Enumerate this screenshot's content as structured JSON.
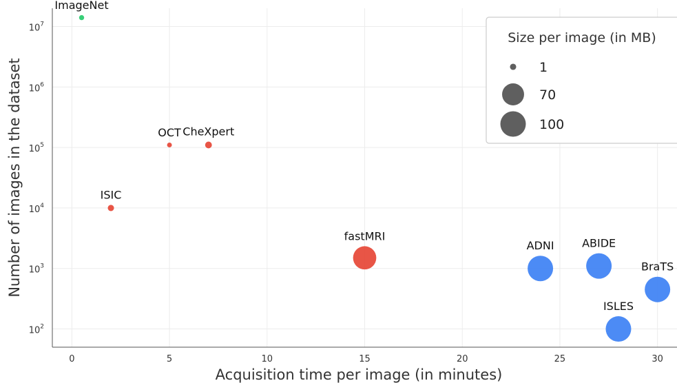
{
  "chart_data": {
    "type": "scatter",
    "title": "",
    "xlabel": "Acquisition time per image (in minutes)",
    "ylabel": "Number of images in the dataset",
    "xlim": [
      -1,
      31
    ],
    "x_ticks": [
      0,
      5,
      10,
      15,
      20,
      25,
      30
    ],
    "y_scale": "log",
    "ylim": [
      50,
      20000000
    ],
    "y_ticks": [
      {
        "value": 100,
        "base": "10",
        "exp": "2"
      },
      {
        "value": 1000,
        "base": "10",
        "exp": "3"
      },
      {
        "value": 10000,
        "base": "10",
        "exp": "4"
      },
      {
        "value": 100000,
        "base": "10",
        "exp": "5"
      },
      {
        "value": 1000000,
        "base": "10",
        "exp": "6"
      },
      {
        "value": 10000000,
        "base": "10",
        "exp": "7"
      }
    ],
    "grid": true,
    "points": [
      {
        "label": "ImageNet",
        "x": 0.5,
        "y": 14000000,
        "size_mb": 0.2,
        "color": "#2ecc71"
      },
      {
        "label": "OCT",
        "x": 5,
        "y": 110000,
        "size_mb": 0.1,
        "color": "#e74c3c"
      },
      {
        "label": "CheXpert",
        "x": 7,
        "y": 110000,
        "size_mb": 1.5,
        "color": "#e74c3c"
      },
      {
        "label": "ISIC",
        "x": 2,
        "y": 10000,
        "size_mb": 1,
        "color": "#e74c3c"
      },
      {
        "label": "fastMRI",
        "x": 15,
        "y": 1500,
        "size_mb": 80,
        "color": "#e74c3c"
      },
      {
        "label": "ADNI",
        "x": 24,
        "y": 1000,
        "size_mb": 100,
        "color": "#4285f4"
      },
      {
        "label": "ABIDE",
        "x": 27,
        "y": 1100,
        "size_mb": 100,
        "color": "#4285f4"
      },
      {
        "label": "BraTS",
        "x": 30,
        "y": 450,
        "size_mb": 100,
        "color": "#4285f4"
      },
      {
        "label": "ISLES",
        "x": 28,
        "y": 100,
        "size_mb": 100,
        "color": "#4285f4"
      }
    ],
    "legend": {
      "title": "Size per image (in MB)",
      "position": "top-right",
      "marker_color": "#5f5f5f",
      "entries": [
        {
          "label": "1",
          "size_mb": 1
        },
        {
          "label": "70",
          "size_mb": 70
        },
        {
          "label": "100",
          "size_mb": 100
        }
      ]
    }
  }
}
